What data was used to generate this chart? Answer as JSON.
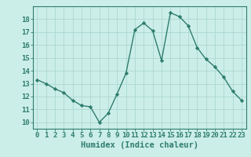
{
  "x": [
    0,
    1,
    2,
    3,
    4,
    5,
    6,
    7,
    8,
    9,
    10,
    11,
    12,
    13,
    14,
    15,
    16,
    17,
    18,
    19,
    20,
    21,
    22,
    23
  ],
  "y": [
    13.3,
    13.0,
    12.6,
    12.3,
    11.7,
    11.3,
    11.2,
    10.0,
    10.7,
    12.2,
    13.8,
    17.2,
    17.7,
    17.1,
    14.8,
    18.5,
    18.2,
    17.5,
    15.8,
    14.9,
    14.3,
    13.5,
    12.4,
    11.7
  ],
  "line_color": "#2e7d6e",
  "marker": "D",
  "marker_size": 2.2,
  "bg_color": "#cceee8",
  "grid_color": "#aad8d0",
  "xlabel": "Humidex (Indice chaleur)",
  "ylabel_ticks": [
    10,
    11,
    12,
    13,
    14,
    15,
    16,
    17,
    18
  ],
  "xlim": [
    -0.5,
    23.5
  ],
  "ylim": [
    9.5,
    19.0
  ],
  "xtick_labels": [
    "0",
    "1",
    "2",
    "3",
    "4",
    "5",
    "6",
    "7",
    "8",
    "9",
    "10",
    "11",
    "12",
    "13",
    "14",
    "15",
    "16",
    "17",
    "18",
    "19",
    "20",
    "21",
    "22",
    "23"
  ],
  "axis_color": "#2e7d6e",
  "tick_color": "#2e7d6e",
  "label_color": "#2e7d6e",
  "font_size_axis": 6.5,
  "font_size_label": 7.5,
  "line_width": 1.0
}
